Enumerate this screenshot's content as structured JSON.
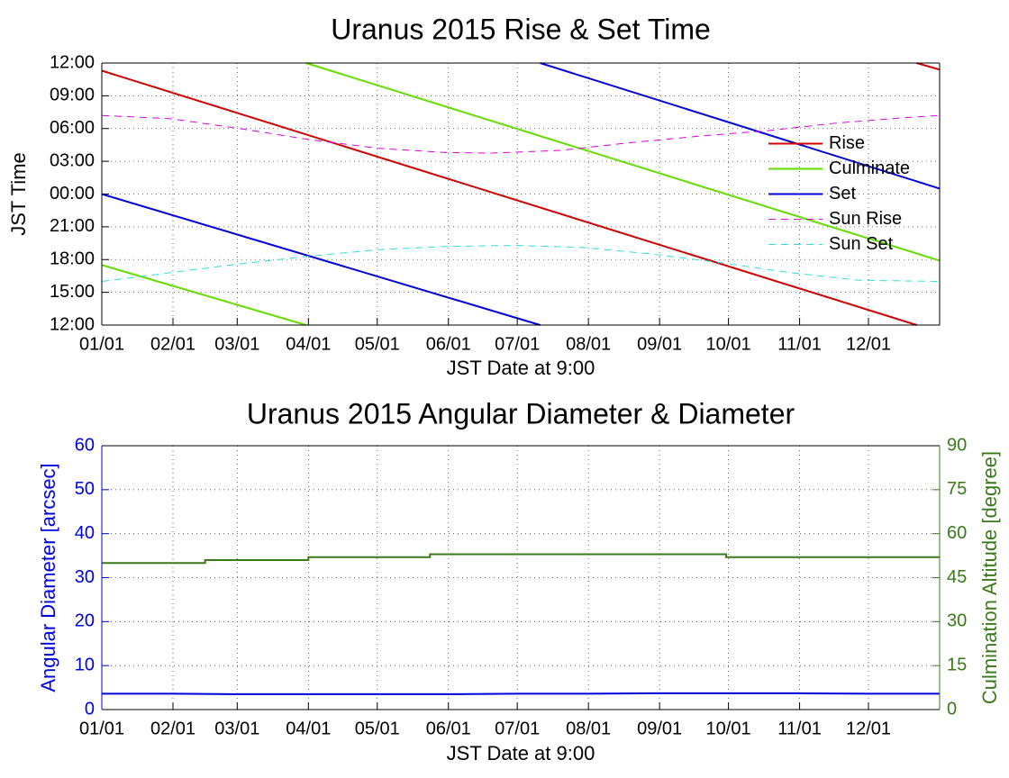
{
  "chart_data": [
    {
      "type": "line",
      "title": "Uranus 2015 Rise & Set Time",
      "xlabel": "JST Date at 9:00",
      "ylabel": "JST Time",
      "xlim": [
        0,
        365
      ],
      "xticks": [
        {
          "value": 0,
          "label": "01/01"
        },
        {
          "value": 31,
          "label": "02/01"
        },
        {
          "value": 59,
          "label": "03/01"
        },
        {
          "value": 90,
          "label": "04/01"
        },
        {
          "value": 120,
          "label": "05/01"
        },
        {
          "value": 151,
          "label": "06/01"
        },
        {
          "value": 181,
          "label": "07/01"
        },
        {
          "value": 212,
          "label": "08/01"
        },
        {
          "value": 243,
          "label": "09/01"
        },
        {
          "value": 273,
          "label": "10/01"
        },
        {
          "value": 304,
          "label": "11/01"
        },
        {
          "value": 334,
          "label": "12/01"
        }
      ],
      "ylim": [
        12,
        36
      ],
      "yticks": [
        {
          "value": 12,
          "label": "12:00"
        },
        {
          "value": 15,
          "label": "15:00"
        },
        {
          "value": 18,
          "label": "18:00"
        },
        {
          "value": 21,
          "label": "21:00"
        },
        {
          "value": 24,
          "label": "00:00"
        },
        {
          "value": 27,
          "label": "03:00"
        },
        {
          "value": 30,
          "label": "06:00"
        },
        {
          "value": 33,
          "label": "09:00"
        },
        {
          "value": 36,
          "label": "12:00"
        }
      ],
      "grid": true,
      "legend": "east",
      "series": [
        {
          "name": "Rise",
          "color": "#d00000",
          "linestyle": "solid",
          "x": [
            0,
            355,
            355,
            355,
            365
          ],
          "values": [
            35.3,
            12,
            null,
            36,
            35.4
          ]
        },
        {
          "name": "Culminate",
          "color": "#66dd00",
          "linestyle": "solid",
          "x": [
            0,
            89,
            89,
            89,
            365
          ],
          "values": [
            17.5,
            12,
            null,
            36,
            17.9
          ]
        },
        {
          "name": "Set",
          "color": "#0000dd",
          "linestyle": "solid",
          "x": [
            0,
            191,
            191,
            191,
            365
          ],
          "values": [
            24.0,
            12,
            null,
            36,
            24.5
          ]
        },
        {
          "name": "Sun Rise",
          "color": "#dd00dd",
          "linestyle": "dashed",
          "x": [
            0,
            30,
            60,
            90,
            120,
            150,
            170,
            200,
            230,
            260,
            290,
            320,
            350,
            365
          ],
          "values": [
            31.2,
            30.9,
            30.0,
            29.0,
            28.2,
            27.8,
            27.75,
            28.0,
            28.7,
            29.3,
            29.8,
            30.5,
            31.0,
            31.2
          ]
        },
        {
          "name": "Sun Set",
          "color": "#33dddd",
          "linestyle": "dashed",
          "x": [
            0,
            30,
            60,
            90,
            120,
            150,
            180,
            210,
            240,
            270,
            300,
            330,
            365
          ],
          "values": [
            16.0,
            16.8,
            17.6,
            18.3,
            18.9,
            19.2,
            19.3,
            19.1,
            18.5,
            17.7,
            16.8,
            16.1,
            16.0
          ]
        }
      ]
    },
    {
      "type": "line",
      "title": "Uranus 2015 Angular Diameter & Diameter",
      "xlabel": "JST Date at 9:00",
      "ylabel": "Angular Diameter [arcsec]",
      "y2label": "Culmination Altitude [degree]",
      "xlim": [
        0,
        365
      ],
      "xticks": [
        {
          "value": 0,
          "label": "01/01"
        },
        {
          "value": 31,
          "label": "02/01"
        },
        {
          "value": 59,
          "label": "03/01"
        },
        {
          "value": 90,
          "label": "04/01"
        },
        {
          "value": 120,
          "label": "05/01"
        },
        {
          "value": 151,
          "label": "06/01"
        },
        {
          "value": 181,
          "label": "07/01"
        },
        {
          "value": 212,
          "label": "08/01"
        },
        {
          "value": 243,
          "label": "09/01"
        },
        {
          "value": 273,
          "label": "10/01"
        },
        {
          "value": 304,
          "label": "11/01"
        },
        {
          "value": 334,
          "label": "12/01"
        }
      ],
      "ylim": [
        0,
        60
      ],
      "yticks": [
        0,
        10,
        20,
        30,
        40,
        50,
        60
      ],
      "y2lim": [
        0,
        90
      ],
      "y2ticks": [
        0,
        15,
        30,
        45,
        60,
        75,
        90
      ],
      "grid": true,
      "series": [
        {
          "name": "Angular Diameter",
          "color": "#0000dd",
          "linestyle": "solid",
          "x": [
            0,
            31,
            59,
            90,
            120,
            151,
            181,
            212,
            243,
            273,
            304,
            334,
            365
          ],
          "values": [
            3.6,
            3.6,
            3.5,
            3.5,
            3.5,
            3.5,
            3.6,
            3.6,
            3.7,
            3.7,
            3.7,
            3.6,
            3.6
          ]
        },
        {
          "name": "Culmination Altitude",
          "color": "#3a7a1a",
          "linestyle": "solid",
          "axis": "y2",
          "x": [
            0,
            45,
            45,
            90,
            90,
            143,
            143,
            272,
            272,
            365
          ],
          "values": [
            50,
            50,
            51,
            51,
            52,
            52,
            53,
            53,
            52,
            52
          ]
        }
      ]
    }
  ]
}
